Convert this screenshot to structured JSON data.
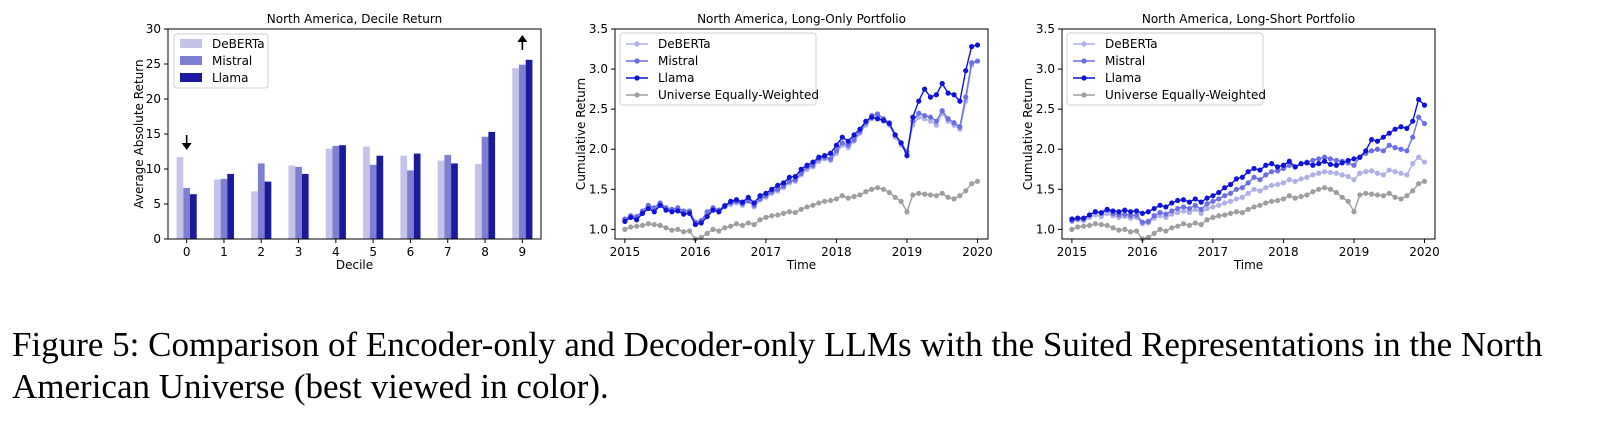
{
  "caption": {
    "text": "Figure 5: Comparison of Encoder-only and Decoder-only LLMs with the Suited Representations in the North American Universe (best viewed in color)."
  },
  "colors": {
    "deberta": "#aeb0e6",
    "mistral": "#6b6ee6",
    "llama": "#0f13d6",
    "llama_bar": "#1b1a9c",
    "mistral_bar": "#7d7fd1",
    "deberta_bar": "#c3c4e8",
    "universe": "#9e9e9e"
  },
  "chart_data": [
    {
      "type": "bar",
      "title": "North America, Decile Return",
      "xlabel": "Decile",
      "ylabel": "Average Absolute Return",
      "categories": [
        "0",
        "1",
        "2",
        "3",
        "4",
        "5",
        "6",
        "7",
        "8",
        "9"
      ],
      "ylim": [
        0,
        30
      ],
      "yticks": [
        0,
        5,
        10,
        15,
        20,
        25,
        30
      ],
      "series": [
        {
          "name": "DeBERTa",
          "values": [
            11.7,
            8.5,
            6.8,
            10.5,
            12.9,
            13.2,
            11.9,
            11.2,
            10.7,
            24.4
          ]
        },
        {
          "name": "Mistral",
          "values": [
            7.3,
            8.6,
            10.8,
            10.3,
            13.3,
            10.6,
            9.8,
            12.0,
            14.6,
            24.9
          ]
        },
        {
          "name": "Llama",
          "values": [
            6.4,
            9.3,
            8.2,
            9.3,
            13.4,
            11.9,
            12.2,
            10.8,
            15.3,
            25.6
          ]
        }
      ],
      "annotations": [
        {
          "category": "0",
          "direction": "down",
          "symbol": "↓"
        },
        {
          "category": "9",
          "direction": "up",
          "symbol": "↑"
        }
      ],
      "legend": "top-left",
      "grid": false
    },
    {
      "type": "line",
      "title": "North America, Long-Only Portfolio",
      "xlabel": "Time",
      "ylabel": "Cumulative Return",
      "xlim": [
        2015,
        2020.1
      ],
      "xticks": [
        "2015",
        "2016",
        "2017",
        "2018",
        "2019",
        "2020"
      ],
      "ylim": [
        0.88,
        3.5
      ],
      "yticks": [
        "1.0",
        "1.5",
        "2.0",
        "2.5",
        "3.0",
        "3.5"
      ],
      "x": [
        2015.0,
        2015.083,
        2015.167,
        2015.25,
        2015.333,
        2015.417,
        2015.5,
        2015.583,
        2015.667,
        2015.75,
        2015.833,
        2015.917,
        2016.0,
        2016.083,
        2016.167,
        2016.25,
        2016.333,
        2016.417,
        2016.5,
        2016.583,
        2016.667,
        2016.75,
        2016.833,
        2016.917,
        2017.0,
        2017.083,
        2017.167,
        2017.25,
        2017.333,
        2017.417,
        2017.5,
        2017.583,
        2017.667,
        2017.75,
        2017.833,
        2017.917,
        2018.0,
        2018.083,
        2018.167,
        2018.25,
        2018.333,
        2018.417,
        2018.5,
        2018.583,
        2018.667,
        2018.75,
        2018.833,
        2018.917,
        2019.0,
        2019.083,
        2019.167,
        2019.25,
        2019.333,
        2019.417,
        2019.5,
        2019.583,
        2019.667,
        2019.75,
        2019.833,
        2019.917,
        2020.0
      ],
      "series": [
        {
          "name": "DeBERTa",
          "values": [
            1.12,
            1.16,
            1.15,
            1.22,
            1.28,
            1.25,
            1.32,
            1.26,
            1.24,
            1.25,
            1.21,
            1.22,
            1.08,
            1.1,
            1.2,
            1.25,
            1.22,
            1.28,
            1.31,
            1.33,
            1.3,
            1.35,
            1.28,
            1.37,
            1.4,
            1.45,
            1.48,
            1.52,
            1.58,
            1.6,
            1.68,
            1.75,
            1.78,
            1.85,
            1.88,
            1.86,
            1.95,
            2.05,
            2.02,
            2.1,
            2.2,
            2.3,
            2.38,
            2.4,
            2.35,
            2.3,
            2.15,
            2.05,
            1.95,
            2.3,
            2.4,
            2.38,
            2.35,
            2.3,
            2.45,
            2.35,
            2.3,
            2.25,
            2.6,
            3.05,
            3.1
          ]
        },
        {
          "name": "Mistral",
          "values": [
            1.13,
            1.17,
            1.16,
            1.23,
            1.3,
            1.27,
            1.33,
            1.27,
            1.25,
            1.27,
            1.23,
            1.23,
            1.09,
            1.11,
            1.22,
            1.27,
            1.24,
            1.3,
            1.33,
            1.35,
            1.32,
            1.36,
            1.3,
            1.38,
            1.42,
            1.47,
            1.5,
            1.54,
            1.6,
            1.62,
            1.7,
            1.78,
            1.8,
            1.88,
            1.9,
            1.88,
            1.98,
            2.08,
            2.05,
            2.12,
            2.22,
            2.33,
            2.42,
            2.44,
            2.38,
            2.33,
            2.18,
            2.08,
            1.97,
            2.35,
            2.45,
            2.42,
            2.4,
            2.35,
            2.48,
            2.38,
            2.33,
            2.28,
            2.65,
            3.08,
            3.1
          ]
        },
        {
          "name": "Llama",
          "values": [
            1.1,
            1.15,
            1.12,
            1.2,
            1.26,
            1.22,
            1.3,
            1.24,
            1.22,
            1.23,
            1.19,
            1.2,
            1.06,
            1.08,
            1.16,
            1.24,
            1.22,
            1.29,
            1.35,
            1.37,
            1.34,
            1.4,
            1.33,
            1.42,
            1.45,
            1.5,
            1.55,
            1.58,
            1.65,
            1.66,
            1.75,
            1.8,
            1.84,
            1.9,
            1.92,
            1.95,
            2.05,
            2.15,
            2.1,
            2.18,
            2.25,
            2.35,
            2.4,
            2.38,
            2.36,
            2.32,
            2.18,
            2.08,
            1.92,
            2.4,
            2.6,
            2.75,
            2.65,
            2.68,
            2.82,
            2.7,
            2.68,
            2.6,
            2.98,
            3.28,
            3.3
          ]
        },
        {
          "name": "Universe Equally-Weighted",
          "values": [
            1.0,
            1.03,
            1.04,
            1.05,
            1.07,
            1.06,
            1.05,
            1.02,
            0.99,
            1.0,
            0.97,
            0.98,
            0.88,
            0.9,
            0.95,
            1.0,
            0.98,
            1.02,
            1.04,
            1.07,
            1.05,
            1.08,
            1.06,
            1.12,
            1.15,
            1.17,
            1.18,
            1.2,
            1.22,
            1.21,
            1.25,
            1.28,
            1.3,
            1.33,
            1.35,
            1.36,
            1.38,
            1.42,
            1.39,
            1.41,
            1.43,
            1.47,
            1.5,
            1.52,
            1.5,
            1.46,
            1.4,
            1.35,
            1.22,
            1.43,
            1.45,
            1.44,
            1.43,
            1.42,
            1.45,
            1.4,
            1.38,
            1.42,
            1.48,
            1.57,
            1.6
          ]
        }
      ],
      "legend": "top-left",
      "grid": false
    },
    {
      "type": "line",
      "title": "North America, Long-Short Portfolio",
      "xlabel": "Time",
      "ylabel": "Cumulative Return",
      "xlim": [
        2015,
        2020.1
      ],
      "xticks": [
        "2015",
        "2016",
        "2017",
        "2018",
        "2019",
        "2020"
      ],
      "ylim": [
        0.88,
        3.5
      ],
      "yticks": [
        "1.0",
        "1.5",
        "2.0",
        "2.5",
        "3.0",
        "3.5"
      ],
      "x": [
        2015.0,
        2015.083,
        2015.167,
        2015.25,
        2015.333,
        2015.417,
        2015.5,
        2015.583,
        2015.667,
        2015.75,
        2015.833,
        2015.917,
        2016.0,
        2016.083,
        2016.167,
        2016.25,
        2016.333,
        2016.417,
        2016.5,
        2016.583,
        2016.667,
        2016.75,
        2016.833,
        2016.917,
        2017.0,
        2017.083,
        2017.167,
        2017.25,
        2017.333,
        2017.417,
        2017.5,
        2017.583,
        2017.667,
        2017.75,
        2017.833,
        2017.917,
        2018.0,
        2018.083,
        2018.167,
        2018.25,
        2018.333,
        2018.417,
        2018.5,
        2018.583,
        2018.667,
        2018.75,
        2018.833,
        2018.917,
        2019.0,
        2019.083,
        2019.167,
        2019.25,
        2019.333,
        2019.417,
        2019.5,
        2019.583,
        2019.667,
        2019.75,
        2019.833,
        2019.917,
        2020.0
      ],
      "series": [
        {
          "name": "DeBERTa",
          "values": [
            1.1,
            1.12,
            1.11,
            1.15,
            1.18,
            1.16,
            1.2,
            1.17,
            1.15,
            1.16,
            1.14,
            1.15,
            1.07,
            1.08,
            1.14,
            1.17,
            1.15,
            1.19,
            1.21,
            1.23,
            1.21,
            1.25,
            1.2,
            1.26,
            1.28,
            1.3,
            1.33,
            1.35,
            1.38,
            1.4,
            1.45,
            1.5,
            1.48,
            1.52,
            1.55,
            1.56,
            1.58,
            1.62,
            1.6,
            1.63,
            1.65,
            1.68,
            1.7,
            1.72,
            1.71,
            1.7,
            1.68,
            1.66,
            1.62,
            1.7,
            1.72,
            1.73,
            1.7,
            1.68,
            1.74,
            1.72,
            1.7,
            1.68,
            1.82,
            1.9,
            1.84
          ]
        },
        {
          "name": "Mistral",
          "values": [
            1.11,
            1.14,
            1.13,
            1.18,
            1.22,
            1.2,
            1.24,
            1.2,
            1.18,
            1.19,
            1.17,
            1.18,
            1.09,
            1.1,
            1.17,
            1.21,
            1.19,
            1.23,
            1.26,
            1.28,
            1.26,
            1.3,
            1.25,
            1.32,
            1.35,
            1.38,
            1.42,
            1.45,
            1.5,
            1.52,
            1.58,
            1.65,
            1.62,
            1.68,
            1.72,
            1.73,
            1.76,
            1.8,
            1.78,
            1.82,
            1.84,
            1.86,
            1.88,
            1.9,
            1.88,
            1.86,
            1.85,
            1.83,
            1.8,
            1.9,
            1.95,
            1.98,
            2.0,
            1.98,
            2.05,
            2.02,
            2.0,
            1.98,
            2.15,
            2.4,
            2.32
          ]
        },
        {
          "name": "Llama",
          "values": [
            1.13,
            1.14,
            1.14,
            1.18,
            1.22,
            1.21,
            1.25,
            1.23,
            1.22,
            1.24,
            1.22,
            1.23,
            1.2,
            1.22,
            1.26,
            1.3,
            1.28,
            1.33,
            1.36,
            1.37,
            1.34,
            1.38,
            1.34,
            1.39,
            1.42,
            1.46,
            1.52,
            1.56,
            1.63,
            1.65,
            1.72,
            1.76,
            1.74,
            1.8,
            1.82,
            1.78,
            1.8,
            1.85,
            1.78,
            1.82,
            1.83,
            1.8,
            1.82,
            1.85,
            1.81,
            1.8,
            1.83,
            1.86,
            1.88,
            1.9,
            1.98,
            2.12,
            2.1,
            2.15,
            2.2,
            2.25,
            2.28,
            2.26,
            2.35,
            2.62,
            2.55
          ]
        },
        {
          "name": "Universe Equally-Weighted",
          "values": [
            1.0,
            1.03,
            1.04,
            1.05,
            1.07,
            1.06,
            1.05,
            1.02,
            0.99,
            1.0,
            0.97,
            0.98,
            0.88,
            0.9,
            0.95,
            1.0,
            0.98,
            1.02,
            1.04,
            1.07,
            1.05,
            1.08,
            1.06,
            1.12,
            1.15,
            1.17,
            1.18,
            1.2,
            1.22,
            1.21,
            1.25,
            1.28,
            1.3,
            1.33,
            1.35,
            1.36,
            1.38,
            1.42,
            1.39,
            1.41,
            1.43,
            1.47,
            1.5,
            1.52,
            1.5,
            1.46,
            1.4,
            1.35,
            1.22,
            1.43,
            1.45,
            1.44,
            1.43,
            1.42,
            1.45,
            1.4,
            1.38,
            1.42,
            1.48,
            1.57,
            1.6
          ]
        }
      ],
      "legend": "top-left",
      "grid": false
    }
  ]
}
